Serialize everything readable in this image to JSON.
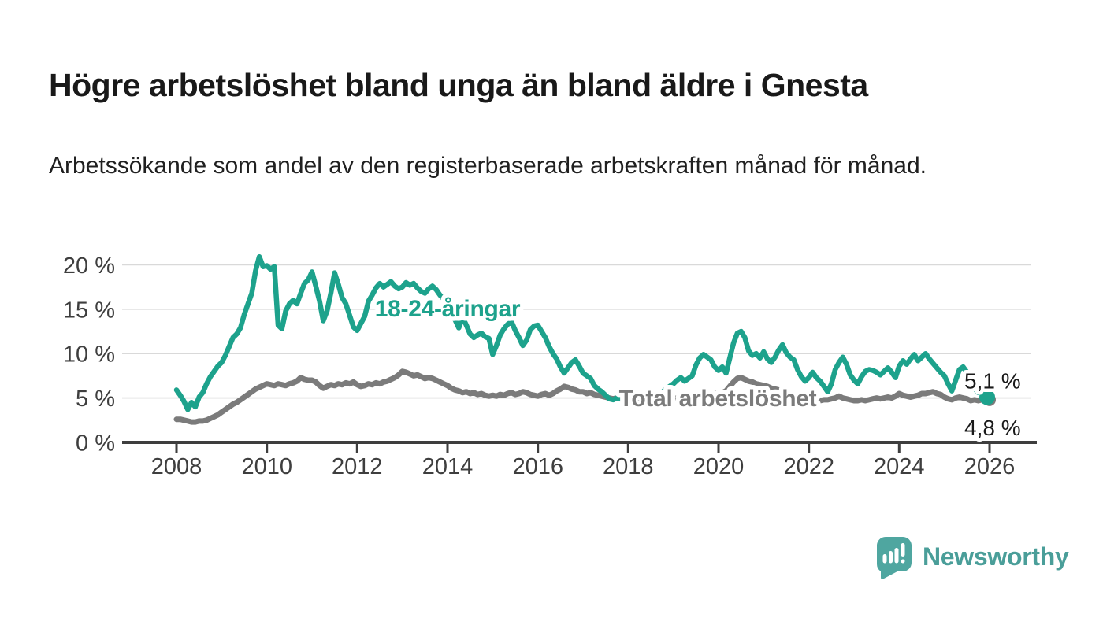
{
  "header": {
    "title": "Högre arbetslöshet bland unga än bland äldre i Gnesta",
    "subtitle": "Arbetssökande som andel av den registerbaserade arbetskraften månad för månad."
  },
  "chart_data": {
    "type": "line",
    "title": "Högre arbetslöshet bland unga än bland äldre i Gnesta",
    "x_unit": "month",
    "x_start": "2008-01",
    "x_end": "2026-01",
    "ylim": [
      0,
      22
    ],
    "grid": "horizontal",
    "grid_color": "#d9d9d9",
    "axis_color": "#3e3e3e",
    "end_label_color": "#1a1a1a",
    "legend_position": "inline-labels",
    "yticks": [
      {
        "value": 0,
        "label": "0 %"
      },
      {
        "value": 5,
        "label": "5 %"
      },
      {
        "value": 10,
        "label": "10 %"
      },
      {
        "value": 15,
        "label": "15 %"
      },
      {
        "value": 20,
        "label": "20 %"
      }
    ],
    "xticks": [
      {
        "value": 2008,
        "label": "2008"
      },
      {
        "value": 2010,
        "label": "2010"
      },
      {
        "value": 2012,
        "label": "2012"
      },
      {
        "value": 2014,
        "label": "2014"
      },
      {
        "value": 2016,
        "label": "2016"
      },
      {
        "value": 2018,
        "label": "2018"
      },
      {
        "value": 2020,
        "label": "2020"
      },
      {
        "value": 2022,
        "label": "2022"
      },
      {
        "value": 2024,
        "label": "2024"
      },
      {
        "value": 2026,
        "label": "2026"
      }
    ],
    "series": [
      {
        "name": "Total arbetslöshet",
        "color": "#7b7b7b",
        "end_label": "4,8 %",
        "end_value": 4.8,
        "values": [
          2.6,
          2.6,
          2.5,
          2.4,
          2.3,
          2.3,
          2.4,
          2.4,
          2.5,
          2.7,
          2.9,
          3.1,
          3.4,
          3.7,
          4.0,
          4.3,
          4.5,
          4.8,
          5.1,
          5.4,
          5.7,
          6.0,
          6.2,
          6.4,
          6.6,
          6.5,
          6.4,
          6.6,
          6.5,
          6.4,
          6.6,
          6.7,
          6.9,
          7.3,
          7.1,
          7.0,
          7.0,
          6.8,
          6.4,
          6.1,
          6.3,
          6.5,
          6.4,
          6.6,
          6.5,
          6.7,
          6.6,
          6.8,
          6.5,
          6.3,
          6.4,
          6.6,
          6.5,
          6.7,
          6.6,
          6.8,
          6.9,
          7.1,
          7.3,
          7.6,
          8.0,
          7.9,
          7.7,
          7.5,
          7.6,
          7.4,
          7.2,
          7.3,
          7.2,
          7.0,
          6.8,
          6.6,
          6.4,
          6.1,
          5.9,
          5.8,
          5.6,
          5.7,
          5.5,
          5.6,
          5.4,
          5.5,
          5.3,
          5.2,
          5.3,
          5.2,
          5.4,
          5.3,
          5.5,
          5.6,
          5.4,
          5.5,
          5.7,
          5.6,
          5.4,
          5.3,
          5.2,
          5.4,
          5.5,
          5.3,
          5.5,
          5.8,
          6.0,
          6.3,
          6.2,
          6.0,
          5.9,
          5.7,
          5.7,
          5.5,
          5.6,
          5.4,
          5.3,
          5.2,
          5.1,
          5.0,
          4.9,
          5.0,
          4.9,
          4.8,
          4.8,
          4.7,
          4.8,
          4.7,
          4.6,
          4.7,
          4.8,
          4.7,
          4.8,
          4.9,
          4.8,
          4.9,
          4.9,
          5.0,
          5.1,
          5.0,
          5.1,
          5.2,
          5.2,
          5.3,
          5.4,
          5.3,
          5.4,
          5.5,
          5.5,
          5.6,
          5.8,
          6.3,
          6.8,
          7.2,
          7.3,
          7.1,
          6.9,
          6.8,
          6.6,
          6.5,
          6.4,
          6.3,
          6.1,
          6.0,
          5.9,
          5.7,
          5.5,
          5.3,
          5.2,
          5.0,
          4.9,
          4.9,
          4.9,
          4.8,
          4.7,
          4.7,
          4.8,
          4.8,
          4.9,
          5.0,
          5.2,
          5.0,
          4.9,
          4.8,
          4.7,
          4.7,
          4.8,
          4.7,
          4.8,
          4.9,
          5.0,
          4.9,
          5.0,
          5.1,
          5.0,
          5.2,
          5.5,
          5.3,
          5.2,
          5.1,
          5.2,
          5.3,
          5.5,
          5.5,
          5.6,
          5.7,
          5.5,
          5.4,
          5.1,
          4.9,
          4.8,
          5.0,
          5.1,
          5.0,
          4.9,
          4.7,
          4.8,
          4.7,
          4.8,
          4.8,
          4.8
        ]
      },
      {
        "name": "18-24-åringar",
        "color": "#1da28c",
        "end_label": "5,1 %",
        "end_value": 5.1,
        "values": [
          5.9,
          5.3,
          4.6,
          3.7,
          4.5,
          4.0,
          5.1,
          5.6,
          6.6,
          7.4,
          8.0,
          8.6,
          9.0,
          9.8,
          10.8,
          11.8,
          12.2,
          12.9,
          14.4,
          15.6,
          16.8,
          19.3,
          20.9,
          19.8,
          19.9,
          19.5,
          19.8,
          13.2,
          12.8,
          14.8,
          15.6,
          16.0,
          15.6,
          16.8,
          17.9,
          18.3,
          19.2,
          17.6,
          15.9,
          13.7,
          14.8,
          16.8,
          19.1,
          17.8,
          16.3,
          15.6,
          14.3,
          13.0,
          12.6,
          13.4,
          14.2,
          15.9,
          16.6,
          17.4,
          17.9,
          17.5,
          17.8,
          18.1,
          17.6,
          17.3,
          17.5,
          18.0,
          17.7,
          17.9,
          17.4,
          17.0,
          16.8,
          17.3,
          17.6,
          17.2,
          16.6,
          16.1,
          15.2,
          14.2,
          13.8,
          12.9,
          14.1,
          13.2,
          12.2,
          11.8,
          12.1,
          12.3,
          11.9,
          11.7,
          9.9,
          10.9,
          12.1,
          12.8,
          13.3,
          13.6,
          12.6,
          11.8,
          10.9,
          11.5,
          12.7,
          13.1,
          13.2,
          12.5,
          11.8,
          10.8,
          10.0,
          9.4,
          8.5,
          7.8,
          8.4,
          9.0,
          9.3,
          8.6,
          7.8,
          7.5,
          7.2,
          6.4,
          6.0,
          5.7,
          5.3,
          4.9,
          4.8,
          5.0,
          4.9,
          4.7,
          4.6,
          4.4,
          4.2,
          4.1,
          4.3,
          4.5,
          4.4,
          4.7,
          5.1,
          5.6,
          6.0,
          6.3,
          6.6,
          7.0,
          7.3,
          6.9,
          7.2,
          7.5,
          8.7,
          9.5,
          9.9,
          9.6,
          9.3,
          8.5,
          8.1,
          8.5,
          7.8,
          9.5,
          11.2,
          12.3,
          12.5,
          11.8,
          10.3,
          9.8,
          10.0,
          9.5,
          10.2,
          9.4,
          9.0,
          9.6,
          10.4,
          11.0,
          10.1,
          9.6,
          9.3,
          8.2,
          7.4,
          6.9,
          7.3,
          7.9,
          7.3,
          6.9,
          6.3,
          5.7,
          6.6,
          8.2,
          9.0,
          9.6,
          8.8,
          7.6,
          7.0,
          6.6,
          7.4,
          8.0,
          8.2,
          8.1,
          7.9,
          7.6,
          8.0,
          8.4,
          7.9,
          7.3,
          8.6,
          9.2,
          8.8,
          9.4,
          9.9,
          9.2,
          9.6,
          10.0,
          9.4,
          8.9,
          8.4,
          7.9,
          7.5,
          6.6,
          5.8,
          7.0,
          8.2,
          8.5,
          7.9,
          7.0,
          6.1,
          5.6,
          6.0,
          5.4,
          5.1
        ]
      }
    ]
  },
  "footer": {
    "brand": "Newsworthy",
    "logo_color": "#4fa6a0",
    "brand_text_color": "#4a9e99"
  }
}
